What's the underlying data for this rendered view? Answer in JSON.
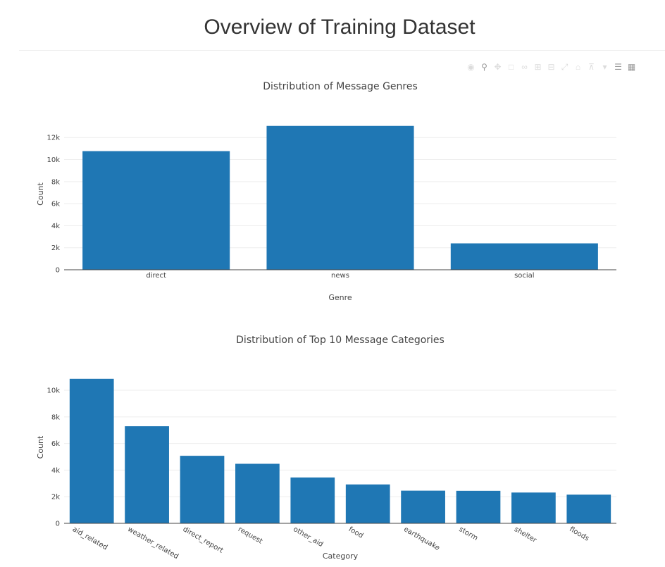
{
  "page": {
    "title": "Overview of Training Dataset"
  },
  "toolbar": {
    "icons": [
      "camera-icon",
      "zoom-icon",
      "pan-icon",
      "box-select-icon",
      "lasso-icon",
      "zoom-in-icon",
      "zoom-out-icon",
      "autoscale-icon",
      "reset-axes-icon",
      "spike-lines-icon",
      "hover-closest-icon",
      "hover-compare-icon",
      "plotly-logo-icon"
    ]
  },
  "chart_data": [
    {
      "type": "bar",
      "title": "Distribution of Message Genres",
      "xlabel": "Genre",
      "ylabel": "Count",
      "categories": [
        "direct",
        "news",
        "social"
      ],
      "values": [
        10766,
        13054,
        2396
      ],
      "ylim": [
        0,
        13741
      ],
      "yticks": [
        0,
        2000,
        4000,
        6000,
        8000,
        10000,
        12000
      ],
      "ytick_labels": [
        "0",
        "2k",
        "4k",
        "6k",
        "8k",
        "10k",
        "12k"
      ],
      "grid": true,
      "color": "#1f77b4"
    },
    {
      "type": "bar",
      "title": "Distribution of Top 10 Message Categories",
      "xlabel": "Category",
      "ylabel": "Count",
      "categories": [
        "aid_related",
        "weather_related",
        "direct_report",
        "request",
        "other_aid",
        "food",
        "earthquake",
        "storm",
        "shelter",
        "floods"
      ],
      "values": [
        10860,
        7297,
        5075,
        4474,
        3446,
        2923,
        2455,
        2443,
        2314,
        2155
      ],
      "ylim": [
        0,
        11432
      ],
      "yticks": [
        0,
        2000,
        4000,
        6000,
        8000,
        10000
      ],
      "ytick_labels": [
        "0",
        "2k",
        "4k",
        "6k",
        "8k",
        "10k"
      ],
      "grid": true,
      "rotate_xticks": true,
      "color": "#1f77b4"
    }
  ]
}
